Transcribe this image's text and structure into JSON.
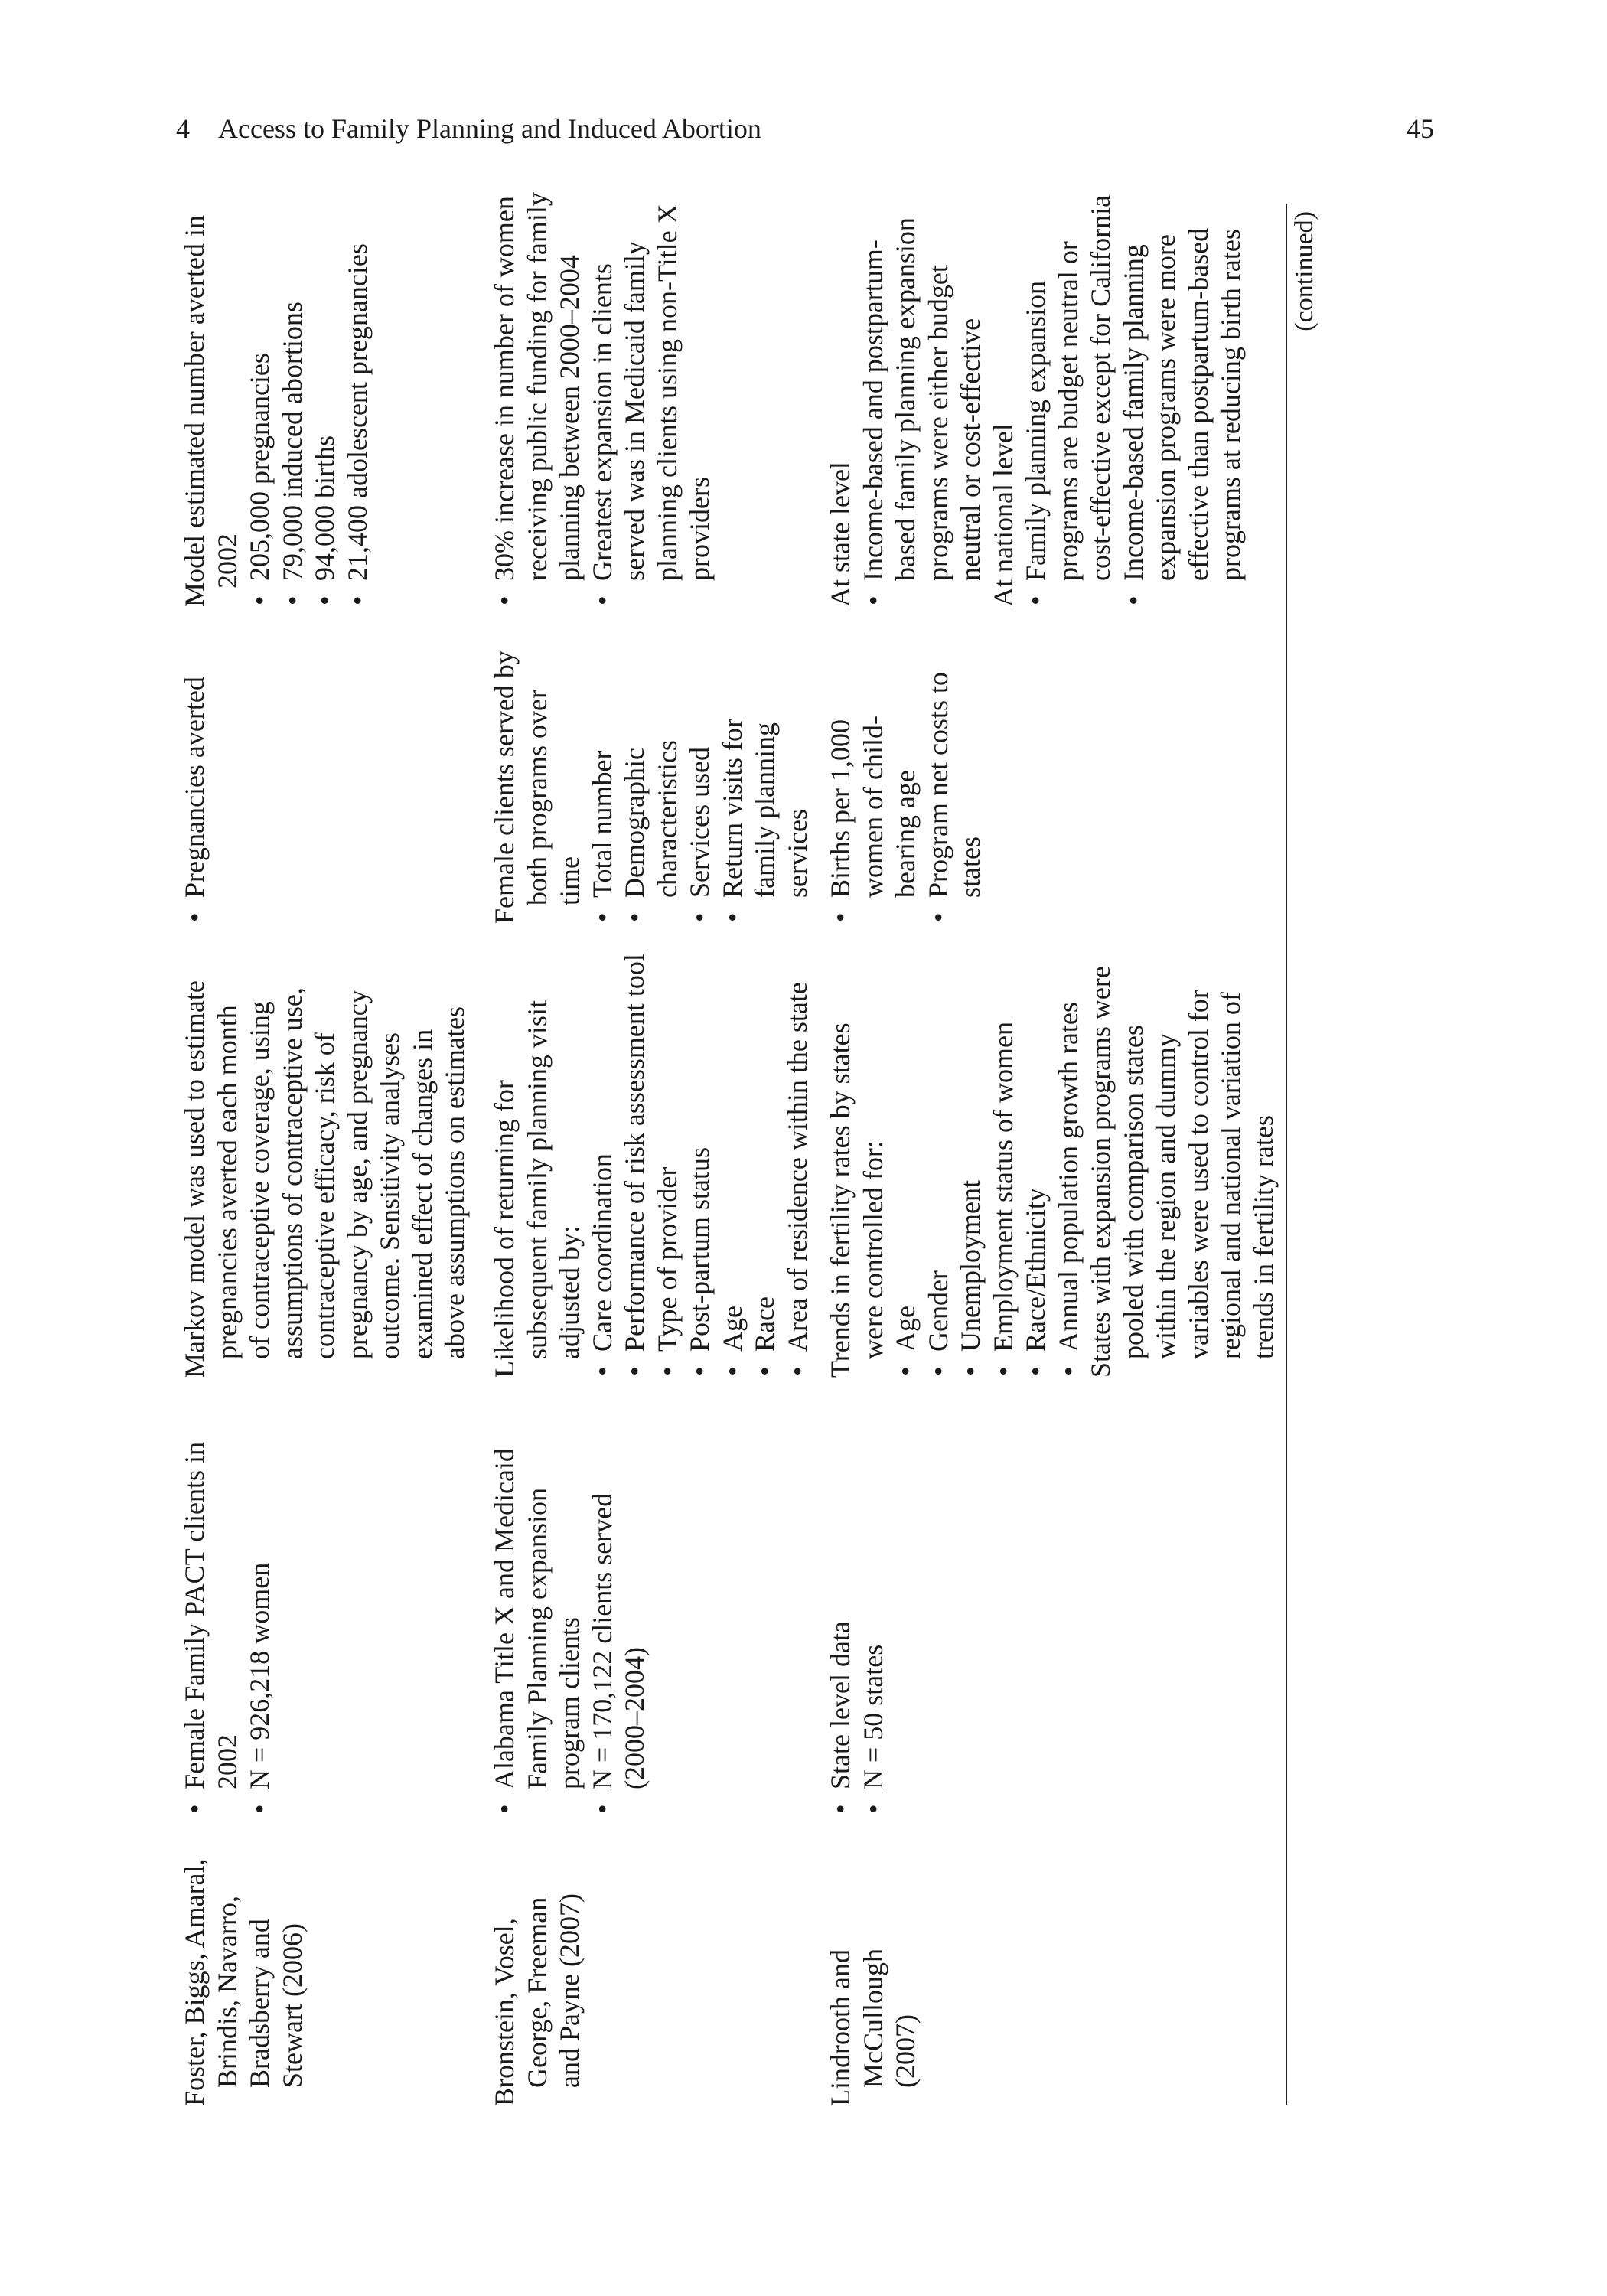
{
  "header": {
    "chapter": "4",
    "title": "Access to Family Planning and Induced Abortion",
    "page": "45"
  },
  "colors": {
    "citation": "#2b3fae",
    "text": "#1a1a1a"
  },
  "table": {
    "rows": [
      {
        "author": {
          "lines": [
            "Foster, Biggs, Amaral,",
            "Brindis, Navarro,",
            "Bradsberry and",
            "Stewart (2006)"
          ],
          "year": "2006"
        },
        "cells": [
          [
            {
              "type": "bullet",
              "lines": [
                "Female Family PACT clients in",
                "2002"
              ]
            },
            {
              "type": "bullet",
              "lines": [
                "N = 926,218 women"
              ]
            }
          ],
          [
            {
              "type": "p",
              "lines": [
                "Markov model was used to estimate",
                "pregnancies averted each month",
                "of contraceptive coverage, using",
                "assumptions of contraceptive use,",
                "contraceptive efficacy, risk of",
                "pregnancy by age, and pregnancy",
                "outcome. Sensitivity analyses",
                "examined effect of changes in",
                "above assumptions on estimates"
              ]
            }
          ],
          [
            {
              "type": "bullet",
              "lines": [
                "Pregnancies averted"
              ]
            }
          ],
          [
            {
              "type": "p",
              "lines": [
                "Model estimated number averted in",
                "2002"
              ]
            },
            {
              "type": "bullet",
              "lines": [
                "205,000 pregnancies"
              ]
            },
            {
              "type": "bullet",
              "lines": [
                "79,000 induced abortions"
              ]
            },
            {
              "type": "bullet",
              "lines": [
                "94,000 births"
              ]
            },
            {
              "type": "bullet",
              "lines": [
                "21,400 adolescent pregnancies"
              ]
            }
          ]
        ]
      },
      {
        "author": {
          "lines": [
            "Bronstein, Vosel,",
            "George, Freeman",
            "and Payne (2007)"
          ],
          "year": "2007"
        },
        "cells": [
          [
            {
              "type": "bullet",
              "lines": [
                "Alabama Title X and Medicaid",
                "Family Planning expansion",
                "program clients"
              ]
            },
            {
              "type": "bullet",
              "lines": [
                "N = 170,122 clients served",
                "(2000–2004)"
              ]
            }
          ],
          [
            {
              "type": "p",
              "lines": [
                "Likelihood of returning for",
                "subsequent family planning visit",
                "adjusted by:"
              ]
            },
            {
              "type": "bullet",
              "lines": [
                "Care coordination"
              ]
            },
            {
              "type": "bullet",
              "lines": [
                "Performance of risk assessment tool"
              ]
            },
            {
              "type": "bullet",
              "lines": [
                "Type of provider"
              ]
            },
            {
              "type": "bullet",
              "lines": [
                "Post-partum status"
              ]
            },
            {
              "type": "bullet",
              "lines": [
                "Age"
              ]
            },
            {
              "type": "bullet",
              "lines": [
                "Race"
              ]
            },
            {
              "type": "bullet",
              "lines": [
                "Area of residence within the state"
              ]
            }
          ],
          [
            {
              "type": "p",
              "lines": [
                "Female clients served by",
                "both programs over",
                "time"
              ]
            },
            {
              "type": "bullet",
              "lines": [
                "Total number"
              ]
            },
            {
              "type": "bullet",
              "lines": [
                "Demographic",
                "characteristics"
              ]
            },
            {
              "type": "bullet",
              "lines": [
                "Services used"
              ]
            },
            {
              "type": "bullet",
              "lines": [
                "Return visits for",
                "family planning",
                "services"
              ]
            }
          ],
          [
            {
              "type": "bullet",
              "lines": [
                "30% increase in number of women",
                "receiving public funding for family",
                "planning between 2000–2004"
              ]
            },
            {
              "type": "bullet",
              "lines": [
                "Greatest expansion in clients",
                "served was in Medicaid family",
                "planning clients using non-Title X",
                "providers"
              ]
            }
          ]
        ]
      },
      {
        "author": {
          "lines": [
            "Lindrooth and",
            "McCullough",
            "(2007)"
          ],
          "year": "2007"
        },
        "cells": [
          [
            {
              "type": "bullet",
              "lines": [
                "State level data"
              ]
            },
            {
              "type": "bullet",
              "lines": [
                "N = 50 states"
              ]
            }
          ],
          [
            {
              "type": "p",
              "lines": [
                "Trends in fertility rates by states",
                "were controlled for:"
              ]
            },
            {
              "type": "bullet",
              "lines": [
                "Age"
              ]
            },
            {
              "type": "bullet",
              "lines": [
                "Gender"
              ]
            },
            {
              "type": "bullet",
              "lines": [
                "Unemployment"
              ]
            },
            {
              "type": "bullet",
              "lines": [
                "Employment status of women"
              ]
            },
            {
              "type": "bullet",
              "lines": [
                "Race/Ethnicity"
              ]
            },
            {
              "type": "bullet",
              "lines": [
                "Annual population growth rates"
              ]
            },
            {
              "type": "p",
              "lines": [
                "States with expansion programs were",
                "pooled with comparison states",
                "within the region and dummy",
                "variables were used to control for",
                "regional and national variation of",
                "trends in fertility rates"
              ]
            }
          ],
          [
            {
              "type": "bullet",
              "lines": [
                "Births per 1,000",
                "women of child-",
                "bearing age"
              ]
            },
            {
              "type": "bullet",
              "lines": [
                "Program net costs to",
                "states"
              ]
            }
          ],
          [
            {
              "type": "p",
              "lines": [
                "At state level"
              ]
            },
            {
              "type": "bullet",
              "lines": [
                "Income-based and postpartum-",
                "based family planning expansion",
                "programs were either budget",
                "neutral or cost-effective"
              ]
            },
            {
              "type": "p",
              "lines": [
                "At national level"
              ]
            },
            {
              "type": "bullet",
              "lines": [
                "Family planning expansion",
                "programs are budget neutral or",
                "cost-effective except for California"
              ]
            },
            {
              "type": "bullet",
              "lines": [
                "Income-based family planning",
                "expansion programs were more",
                "effective than postpartum-based",
                "programs at reducing birth rates"
              ]
            }
          ]
        ]
      }
    ],
    "continued_label": "(continued)"
  }
}
